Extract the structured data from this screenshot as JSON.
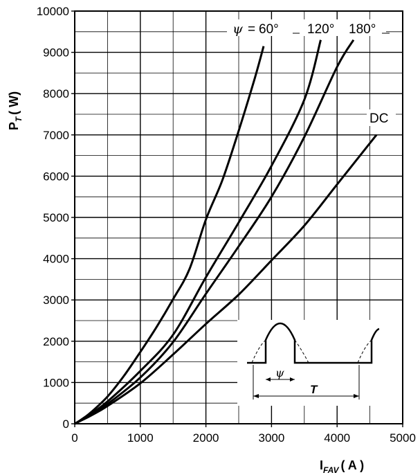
{
  "chart_data": {
    "type": "line",
    "ylabel": {
      "main": "P",
      "sub": "T",
      "unit": "( W)"
    },
    "xlabel": {
      "main": "I",
      "sub": "FAV",
      "unit": "( A )"
    },
    "xlim": [
      0,
      5000
    ],
    "ylim": [
      0,
      10000
    ],
    "xticks": [
      "0",
      "1000",
      "2000",
      "3000",
      "4000",
      "5000"
    ],
    "yticks": [
      "0",
      "1000",
      "2000",
      "3000",
      "4000",
      "5000",
      "6000",
      "7000",
      "8000",
      "9000",
      "10000"
    ],
    "grid": true,
    "series": [
      {
        "label": "60°",
        "x": [
          0,
          100,
          250,
          500,
          750,
          1000,
          1250,
          1500,
          1750,
          2000,
          2250,
          2500,
          2750,
          2880
        ],
        "y": [
          0,
          100,
          280,
          660,
          1160,
          1740,
          2350,
          3020,
          3750,
          4950,
          5900,
          7100,
          8400,
          9150
        ]
      },
      {
        "label": "120°",
        "x": [
          0,
          100,
          250,
          500,
          1000,
          1500,
          2000,
          2500,
          3000,
          3500,
          3750
        ],
        "y": [
          0,
          90,
          240,
          540,
          1280,
          2160,
          3550,
          4880,
          6250,
          7850,
          9300
        ]
      },
      {
        "label": "180°",
        "x": [
          0,
          100,
          250,
          500,
          1000,
          1500,
          2000,
          2500,
          3000,
          3500,
          4000,
          4250
        ],
        "y": [
          0,
          85,
          220,
          480,
          1120,
          1980,
          3150,
          4300,
          5500,
          6950,
          8650,
          9300
        ]
      },
      {
        "label": "DC",
        "x": [
          0,
          100,
          250,
          500,
          1000,
          1500,
          2000,
          2500,
          3000,
          3500,
          4000,
          4600
        ],
        "y": [
          0,
          80,
          200,
          430,
          980,
          1680,
          2420,
          3130,
          3960,
          4800,
          5800,
          7000
        ]
      }
    ],
    "annotations": {
      "psi_symbol": "ψ",
      "psi_equals": "=",
      "curve_60": "60°",
      "curve_120": "120°",
      "curve_180": "180°",
      "curve_dc": "DC"
    },
    "inset": {
      "period_label": "T",
      "angle_label": "ψ"
    }
  }
}
